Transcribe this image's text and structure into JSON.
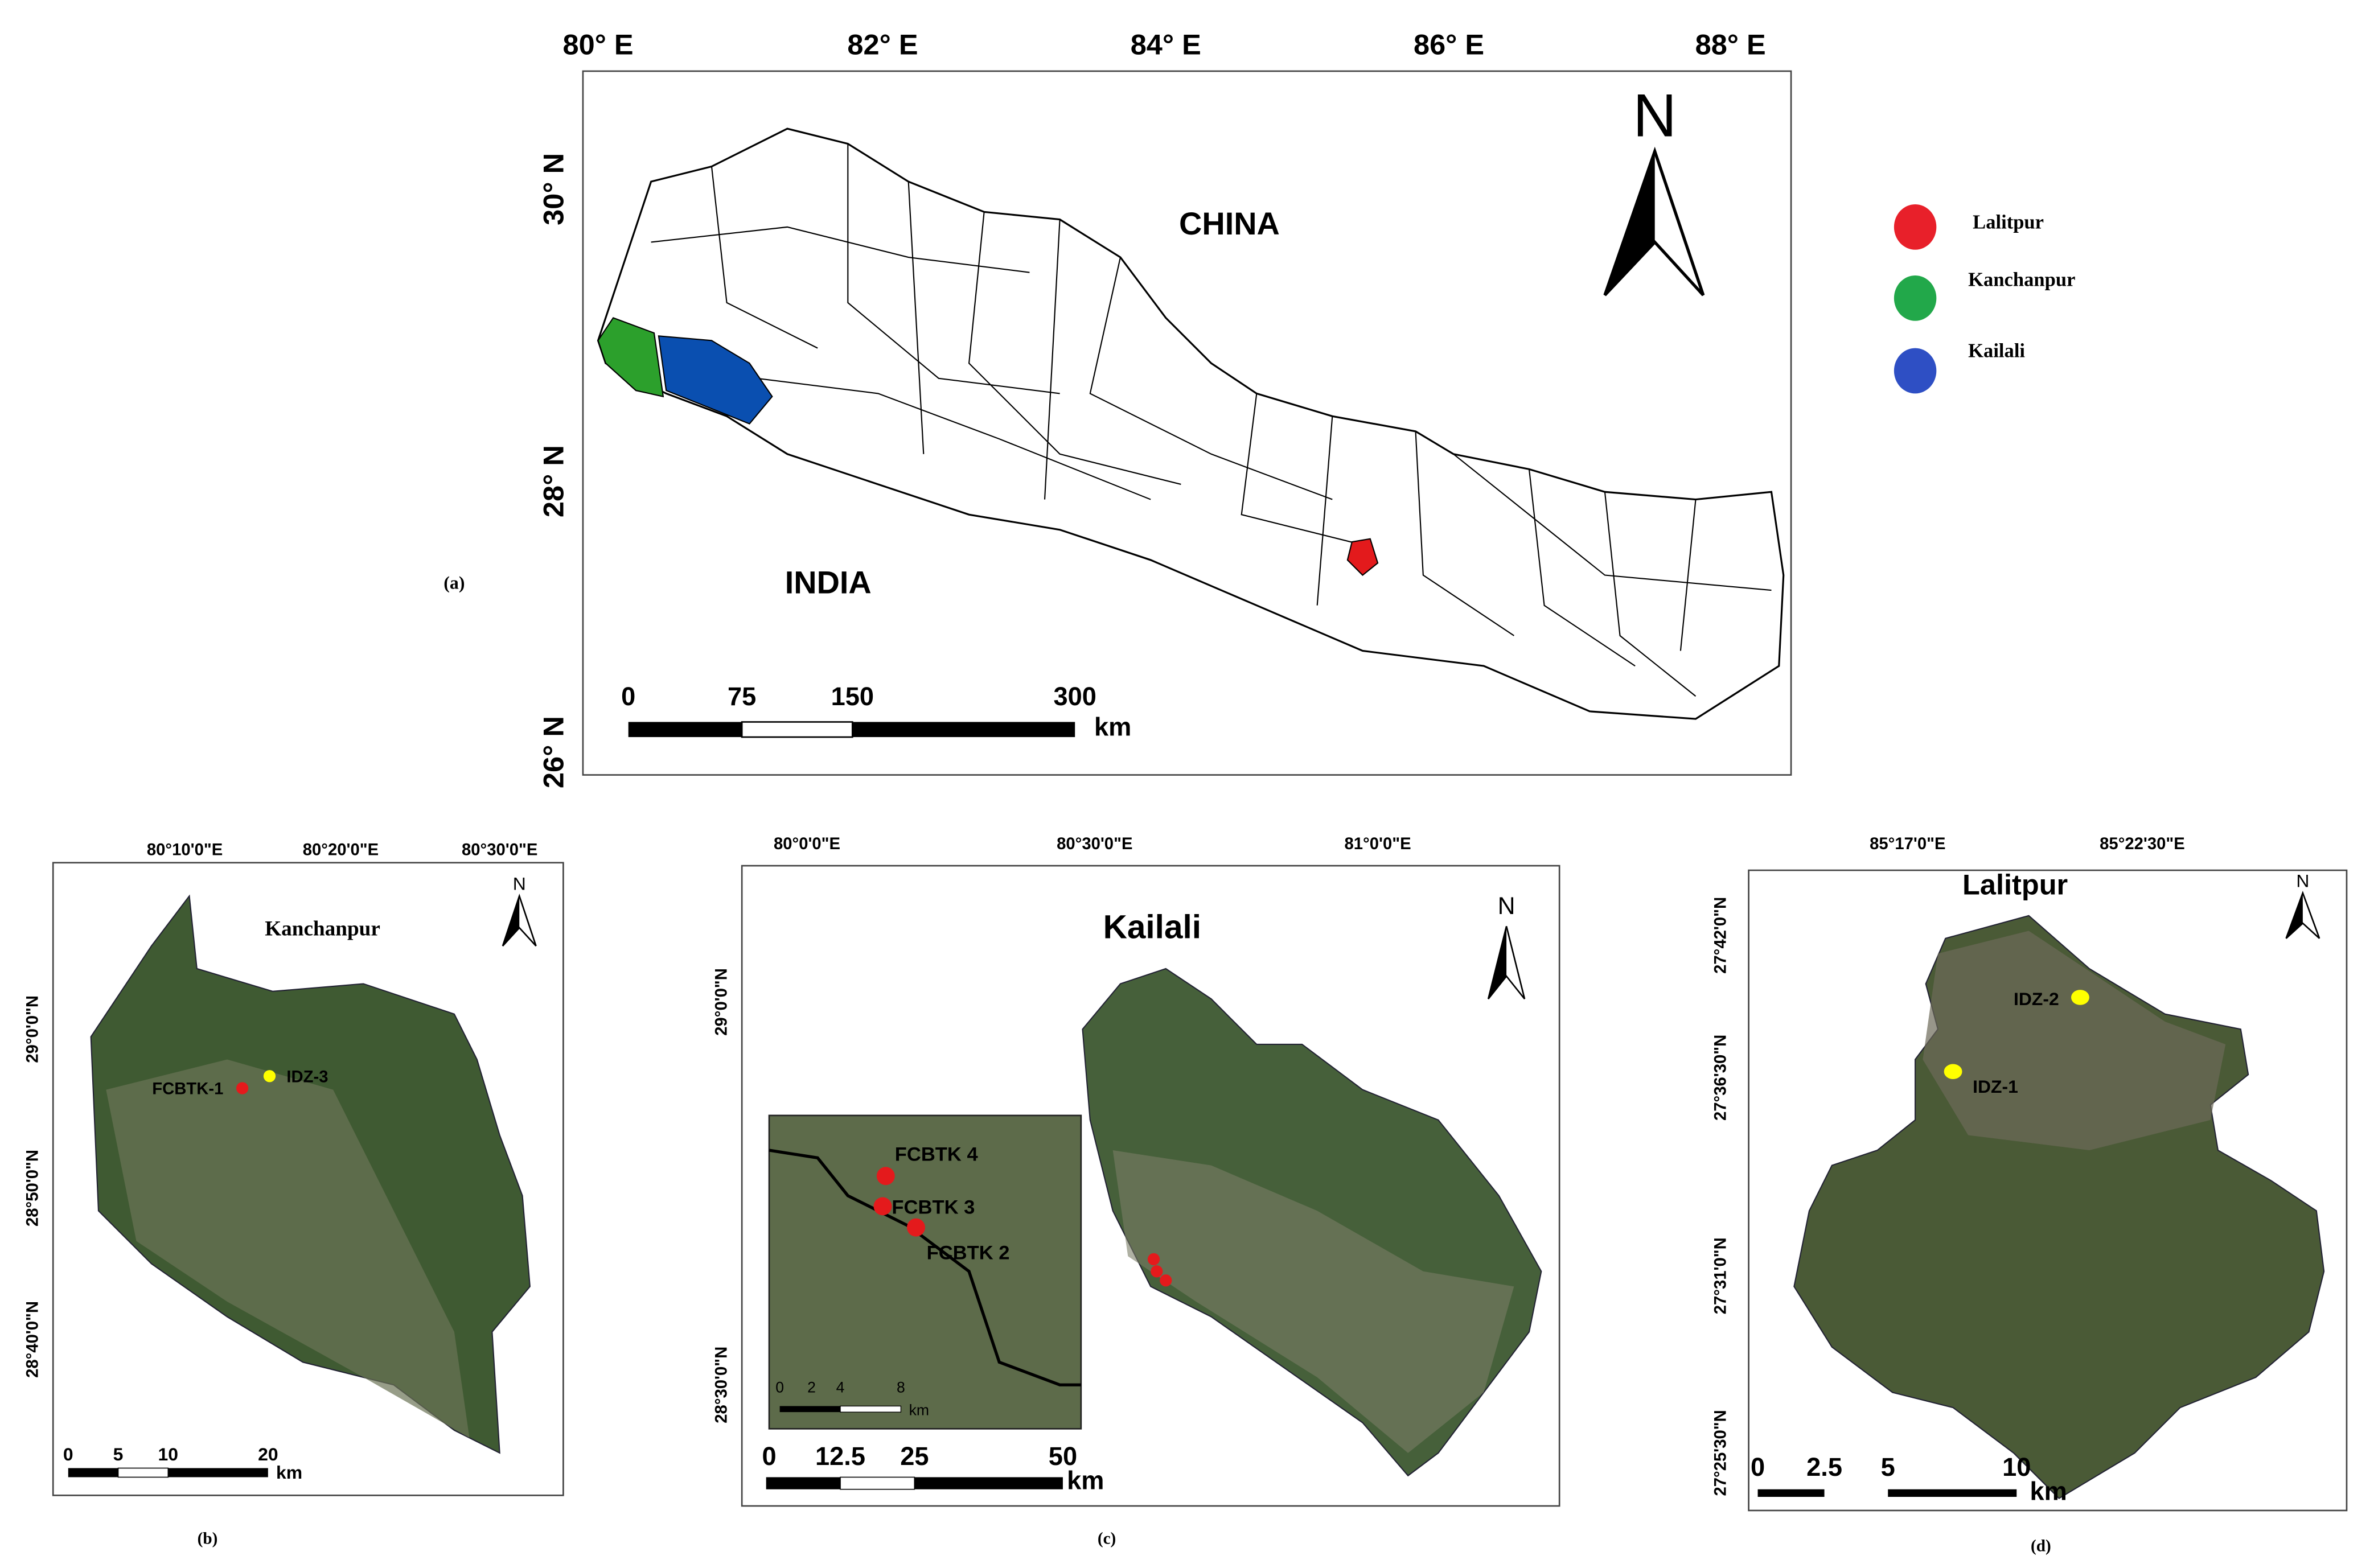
{
  "panel_a": {
    "x_labels": [
      "80° E",
      "82° E",
      "84° E",
      "86° E",
      "88° E"
    ],
    "y_labels": [
      "30° N",
      "28° N",
      "26° N"
    ],
    "north": "N",
    "china": "CHINA",
    "india": "INDIA",
    "scale": [
      "0",
      "75",
      "150",
      "300"
    ],
    "scale_unit": "km",
    "legend": [
      "Lalitpur",
      "Kanchanpur",
      "Kailali"
    ],
    "caption": "(a)"
  },
  "panel_b": {
    "x_labels": [
      "80°10'0\"E",
      "80°20'0\"E",
      "80°30'0\"E"
    ],
    "y_labels": [
      "29°0'0\"N",
      "28°50'0\"N",
      "28°40'0\"N"
    ],
    "title": "Kanchanpur",
    "north": "N",
    "sites": [
      "FCBTK-1",
      "IDZ-3"
    ],
    "scale": [
      "0",
      "5",
      "10",
      "20"
    ],
    "scale_unit": "km",
    "caption": "(b)"
  },
  "panel_c": {
    "x_labels": [
      "80°0'0\"E",
      "80°30'0\"E",
      "81°0'0\"E"
    ],
    "y_labels": [
      "29°0'0\"N",
      "28°30'0\"N"
    ],
    "title": "Kailali",
    "north": "N",
    "sites": [
      "FCBTK 4",
      "FCBTK 3",
      "FCBTK 2"
    ],
    "inset_scale": [
      "0",
      "2",
      "4",
      "8"
    ],
    "inset_scale_unit": "km",
    "scale": [
      "0",
      "12.5",
      "25",
      "50"
    ],
    "scale_unit": "km",
    "caption": "(c)"
  },
  "panel_d": {
    "x_labels": [
      "85°17'0\"E",
      "85°22'30\"E"
    ],
    "y_labels": [
      "27°42'0\"N",
      "27°36'30\"N",
      "27°31'0\"N",
      "27°25'30\"N"
    ],
    "title": "Lalitpur",
    "north": "N",
    "sites": [
      "IDZ-2",
      "IDZ-1"
    ],
    "scale": [
      "0",
      "2.5",
      "5",
      "10"
    ],
    "scale_unit": "km",
    "caption": "(d)"
  }
}
